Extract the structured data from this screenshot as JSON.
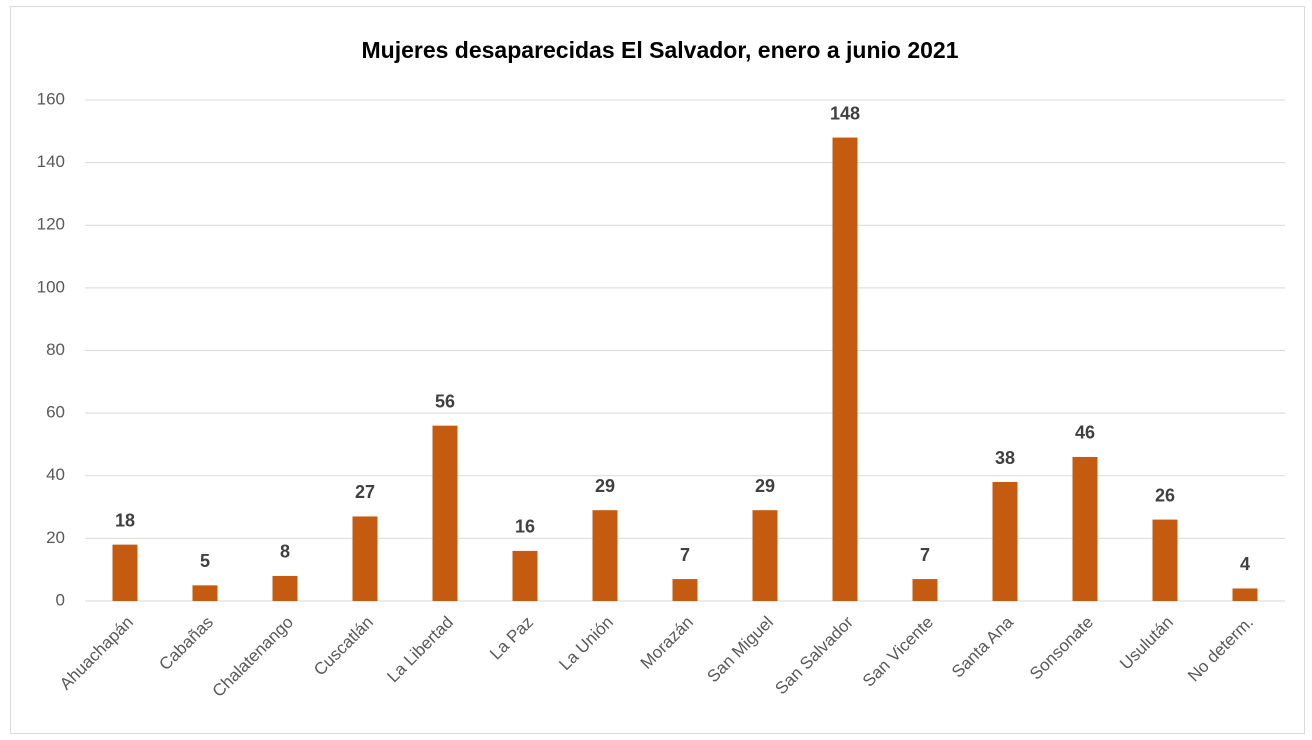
{
  "chart_data": {
    "type": "bar",
    "title": "Mujeres desaparecidas El Salvador, enero a junio 2021",
    "categories": [
      "Ahuachapán",
      "Cabañas",
      "Chalatenango",
      "Cuscatlán",
      "La Libertad",
      "La Paz",
      "La Unión",
      "Morazán",
      "San Miguel",
      "San Salvador",
      "San Vicente",
      "Santa Ana",
      "Sonsonate",
      "Usulután",
      "No determ."
    ],
    "values": [
      18,
      5,
      8,
      27,
      56,
      16,
      29,
      7,
      29,
      148,
      7,
      38,
      46,
      26,
      4
    ],
    "color": "#c55a11",
    "ylim": [
      0,
      160
    ],
    "yticks": [
      0,
      20,
      40,
      60,
      80,
      100,
      120,
      140,
      160
    ],
    "grid": true
  }
}
